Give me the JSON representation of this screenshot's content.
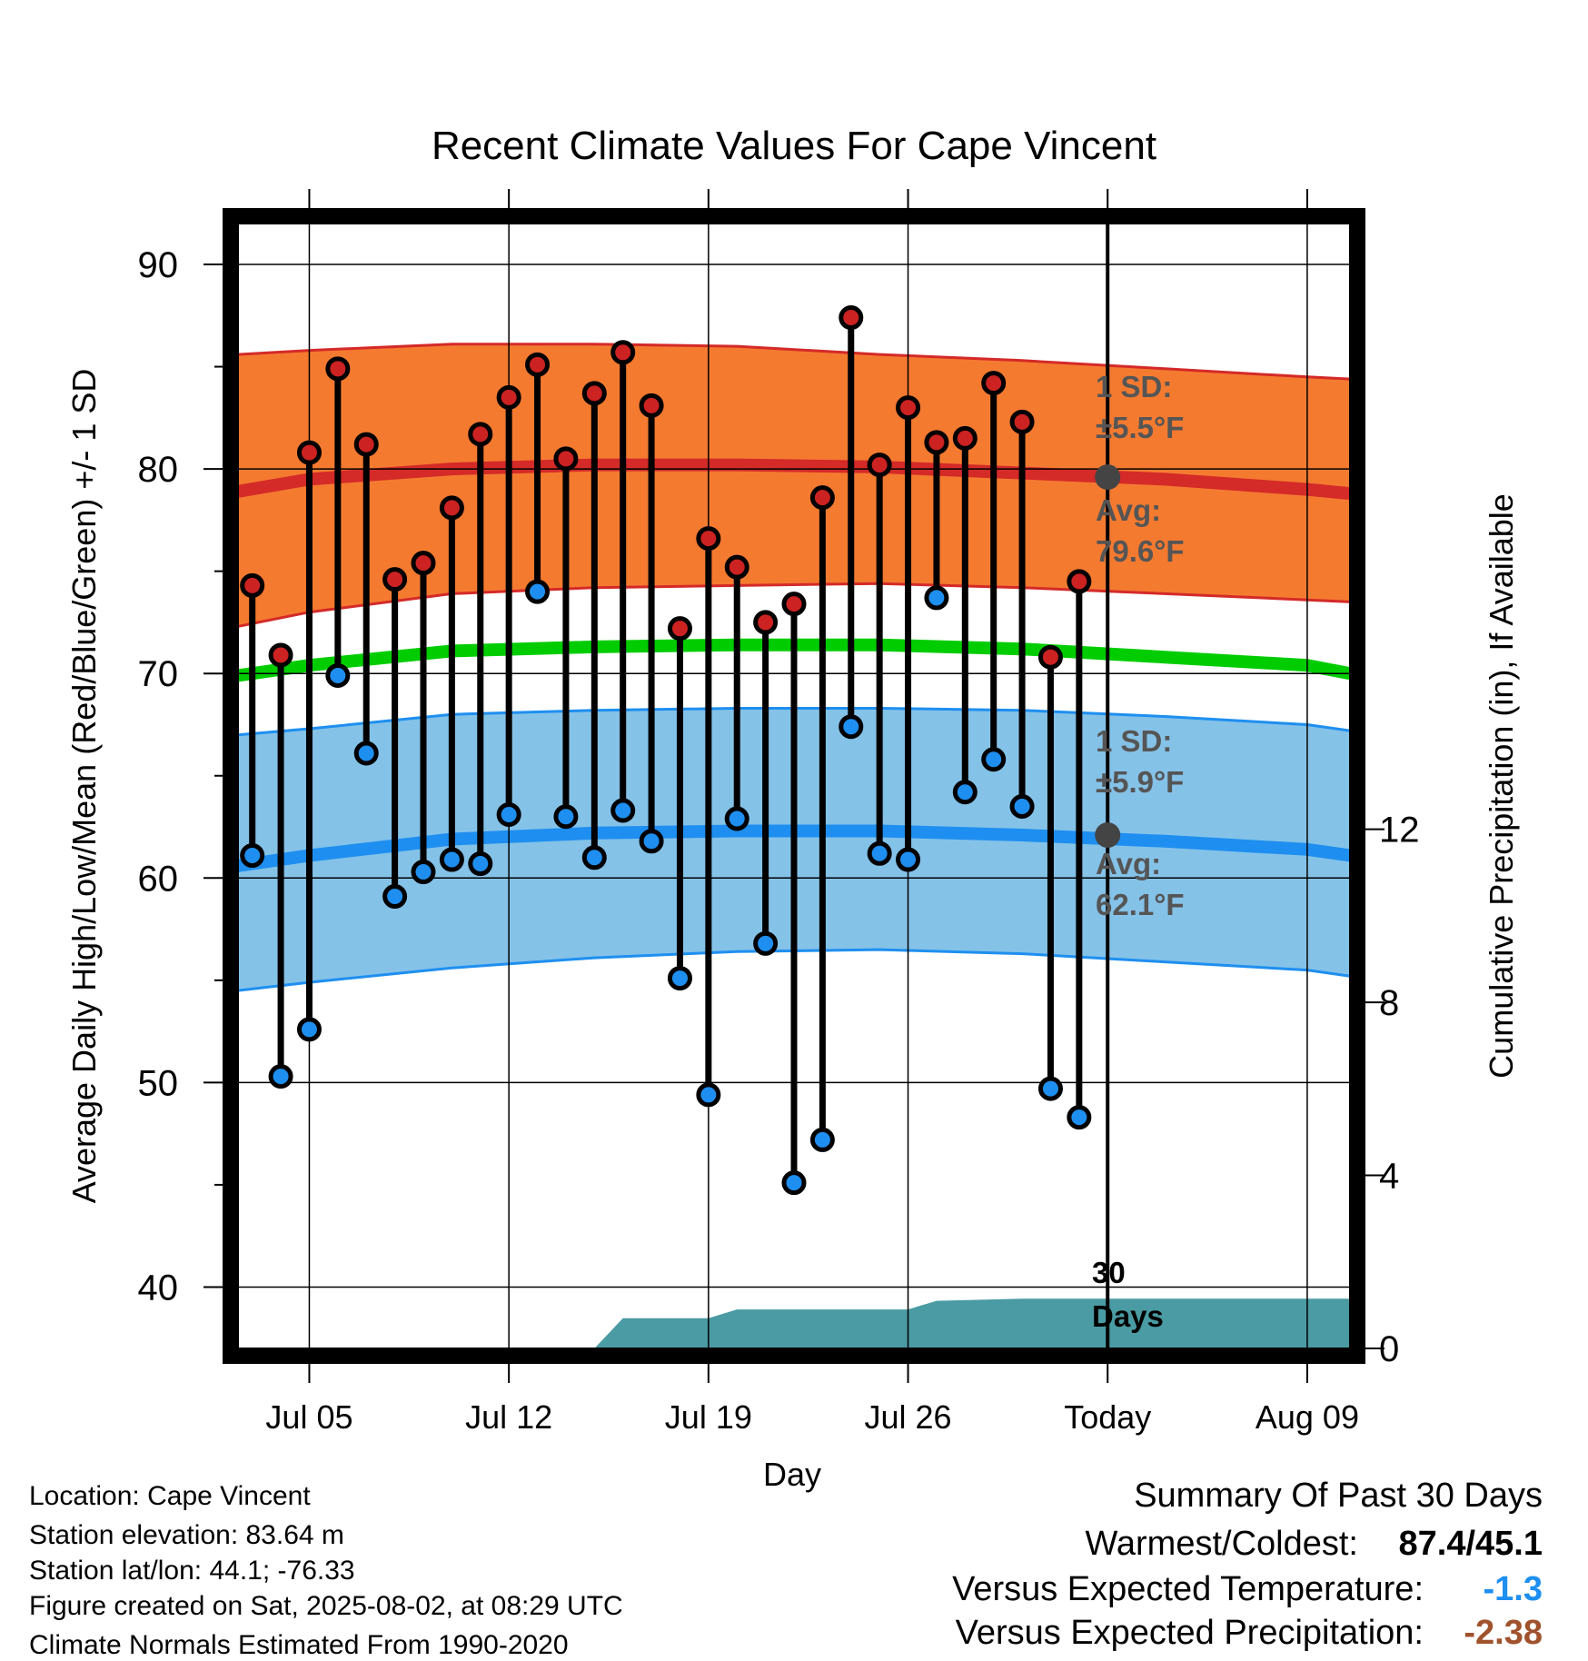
{
  "chart_data": {
    "type": "line",
    "title": "Recent Climate Values For Cape Vincent",
    "xlabel": "Day",
    "ylabel": "Average Daily High/Low/Mean (Red/Blue/Green) +/- 1 SD",
    "y2label": "Cumulative Precipitation (in), If Available",
    "ylim": [
      37,
      92
    ],
    "y2lim": [
      0,
      26
    ],
    "yticks": [
      40,
      50,
      60,
      70,
      80,
      90
    ],
    "y2ticks": [
      0,
      4,
      8,
      12
    ],
    "xticks": [
      {
        "day": 5,
        "label": "Jul 05"
      },
      {
        "day": 12,
        "label": "Jul 12"
      },
      {
        "day": 19,
        "label": "Jul 19"
      },
      {
        "day": 26,
        "label": "Jul 26"
      },
      {
        "day": 33,
        "label": "Today"
      },
      {
        "day": 40,
        "label": "Aug 09"
      }
    ],
    "today_day": 33,
    "days": [
      3,
      4,
      5,
      6,
      7,
      8,
      9,
      10,
      11,
      12,
      13,
      14,
      15,
      16,
      17,
      18,
      19,
      20,
      21,
      22,
      23,
      24,
      25,
      26,
      27,
      28,
      29,
      30,
      31,
      32
    ],
    "daily_high": [
      74.3,
      70.9,
      80.8,
      84.9,
      81.2,
      74.6,
      75.4,
      78.1,
      81.7,
      83.5,
      85.1,
      80.5,
      83.7,
      85.7,
      83.1,
      72.2,
      76.6,
      75.2,
      72.5,
      73.4,
      78.6,
      87.4,
      80.2,
      83.0,
      81.3,
      81.5,
      84.2,
      82.3,
      70.8,
      74.5
    ],
    "daily_low": [
      61.1,
      50.3,
      52.6,
      69.9,
      66.1,
      59.1,
      60.3,
      60.9,
      60.7,
      63.1,
      74.0,
      63.0,
      61.0,
      63.3,
      61.8,
      55.1,
      49.4,
      62.9,
      56.8,
      45.1,
      47.2,
      67.4,
      61.2,
      60.9,
      73.7,
      64.2,
      65.8,
      63.5,
      49.7,
      48.3
    ],
    "normals": {
      "days": [
        2.5,
        5,
        10,
        15,
        20,
        25,
        30,
        35,
        40,
        41.5
      ],
      "high_avg": [
        78.9,
        79.5,
        80.0,
        80.2,
        80.2,
        80.1,
        79.8,
        79.5,
        79.0,
        78.8
      ],
      "high_upper": [
        85.6,
        85.8,
        86.1,
        86.1,
        86.0,
        85.6,
        85.3,
        84.9,
        84.5,
        84.4
      ],
      "high_lower": [
        72.3,
        73.0,
        73.9,
        74.2,
        74.3,
        74.4,
        74.2,
        73.9,
        73.6,
        73.5
      ],
      "low_avg": [
        60.6,
        61.1,
        61.9,
        62.2,
        62.3,
        62.3,
        62.1,
        61.8,
        61.4,
        61.1
      ],
      "low_upper": [
        67.0,
        67.3,
        68.0,
        68.2,
        68.3,
        68.3,
        68.2,
        67.9,
        67.5,
        67.2
      ],
      "low_lower": [
        54.5,
        54.9,
        55.6,
        56.1,
        56.4,
        56.5,
        56.3,
        55.9,
        55.5,
        55.2
      ],
      "mean": [
        69.9,
        70.4,
        71.1,
        71.3,
        71.4,
        71.4,
        71.2,
        70.8,
        70.4,
        70.0
      ]
    },
    "precip": {
      "days": [
        2.5,
        15.0,
        16.0,
        19.0,
        20.0,
        26.0,
        27.0,
        30.0,
        41.5
      ],
      "values": [
        0,
        0,
        0.7,
        0.7,
        0.9,
        0.9,
        1.1,
        1.15,
        1.15
      ]
    },
    "annotations": {
      "high_sd_line1": "1 SD:",
      "high_sd_line2": "±5.5°F",
      "high_avg_line1": "Avg:",
      "high_avg_line2": "79.6°F",
      "high_avg_today": 79.6,
      "low_sd_line1": "1 SD:",
      "low_sd_line2": "±5.9°F",
      "low_avg_line1": "Avg:",
      "low_avg_line2": "62.1°F",
      "low_avg_today": 62.1,
      "window_line1": "30",
      "window_line2": "Days"
    },
    "colors": {
      "high_band": "#f47a30",
      "high_line": "#d42a28",
      "low_band": "#85c2e8",
      "low_line": "#1e8ff0",
      "mean_line": "#00cc00",
      "precip": "#4a9ba3",
      "high_dot": "#cc2222",
      "low_dot": "#1e8ff0"
    },
    "grid": true
  },
  "info": {
    "location": "Location: Cape Vincent",
    "elevation": "Station elevation: 83.64 m",
    "latlon": "Station lat/lon: 44.1; -76.33",
    "created": "Figure created on Sat, 2025-08-02, at 08:29 UTC",
    "normals": "Climate Normals Estimated From 1990-2020"
  },
  "summary": {
    "title": "Summary Of Past 30 Days",
    "warmest_label": "Warmest/Coldest:",
    "warmest_value": "87.4/45.1",
    "temp_label": "Versus Expected Temperature:",
    "temp_value": "-1.3",
    "temp_color": "#1e8ff0",
    "precip_label": "Versus Expected Precipitation:",
    "precip_value": "-2.38",
    "precip_color": "#a0522d"
  }
}
